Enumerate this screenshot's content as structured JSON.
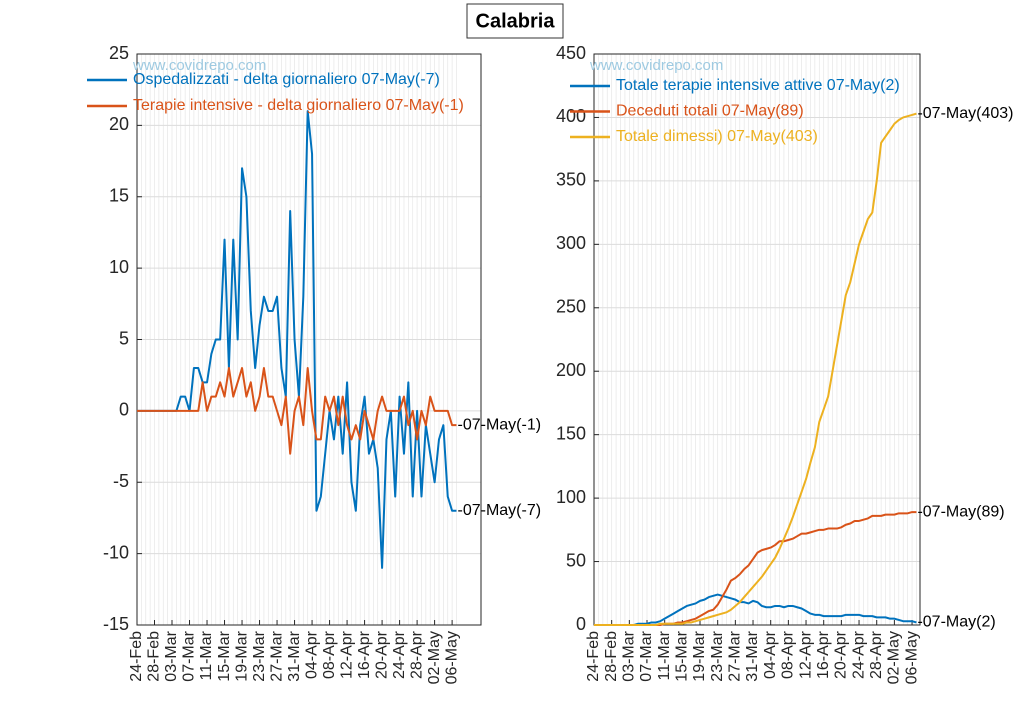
{
  "title": "Calabria",
  "chart_data": [
    {
      "type": "line",
      "watermark": "www.covidrepo.com",
      "categories": [
        "24-Feb",
        null,
        null,
        null,
        "28-Feb",
        null,
        null,
        null,
        "03-Mar",
        null,
        null,
        null,
        "07-Mar",
        null,
        null,
        null,
        "11-Mar",
        null,
        null,
        null,
        "15-Mar",
        null,
        null,
        null,
        "19-Mar",
        null,
        null,
        null,
        "23-Mar",
        null,
        null,
        null,
        "27-Mar",
        null,
        null,
        null,
        "31-Mar",
        null,
        null,
        null,
        "04-Apr",
        null,
        null,
        null,
        "08-Apr",
        null,
        null,
        null,
        "12-Apr",
        null,
        null,
        null,
        "16-Apr",
        null,
        null,
        null,
        "20-Apr",
        null,
        null,
        null,
        "24-Apr",
        null,
        null,
        null,
        "28-Apr",
        null,
        null,
        null,
        "02-May",
        null,
        null,
        null,
        "06-May",
        null
      ],
      "ylim": [
        -15,
        25
      ],
      "yticks": [
        -15,
        -10,
        -5,
        0,
        5,
        10,
        15,
        20,
        25
      ],
      "grid": true,
      "legend": "upper left",
      "series": [
        {
          "name": "Ospedalizzati - delta giornaliero 07-May(-7)",
          "color": "#0072BD",
          "end_label": "-07-May(-7)",
          "values": [
            0,
            0,
            0,
            0,
            0,
            0,
            0,
            0,
            0,
            0,
            1,
            1,
            0,
            3,
            3,
            2,
            2,
            4,
            5,
            5,
            12,
            3,
            12,
            5,
            17,
            15,
            7,
            3,
            6,
            8,
            7,
            7,
            8,
            3,
            1,
            14,
            5,
            1,
            8,
            21,
            18,
            -7,
            -6,
            -3,
            0,
            -2,
            1,
            -3,
            2,
            -5,
            -7,
            -1,
            1,
            -3,
            -2,
            -4,
            -11,
            -2,
            0,
            -6,
            1,
            -3,
            2,
            -6,
            0,
            -6,
            -1,
            -3,
            -5,
            -2,
            -1,
            -6,
            -7,
            -7
          ]
        },
        {
          "name": "Terapie intensive - delta giornaliero 07-May(-1)",
          "color": "#D95319",
          "end_label": "-07-May(-1)",
          "values": [
            0,
            0,
            0,
            0,
            0,
            0,
            0,
            0,
            0,
            0,
            0,
            0,
            0,
            0,
            0,
            2,
            0,
            1,
            1,
            2,
            1,
            3,
            1,
            2,
            3,
            1,
            2,
            0,
            1,
            3,
            1,
            1,
            0,
            -1,
            1,
            -3,
            0,
            1,
            -1,
            3,
            0,
            -2,
            -2,
            1,
            0,
            1,
            -1,
            1,
            -1,
            -2,
            -1,
            -2,
            0,
            -1,
            -2,
            0,
            1,
            0,
            0,
            0,
            0,
            1,
            -1,
            0,
            -2,
            0,
            -1,
            1,
            0,
            0,
            0,
            0,
            -1,
            -1
          ]
        }
      ]
    },
    {
      "type": "line",
      "watermark": "www.covidrepo.com",
      "categories": [
        "24-Feb",
        null,
        null,
        null,
        "28-Feb",
        null,
        null,
        null,
        "03-Mar",
        null,
        null,
        null,
        "07-Mar",
        null,
        null,
        null,
        "11-Mar",
        null,
        null,
        null,
        "15-Mar",
        null,
        null,
        null,
        "19-Mar",
        null,
        null,
        null,
        "23-Mar",
        null,
        null,
        null,
        "27-Mar",
        null,
        null,
        null,
        "31-Mar",
        null,
        null,
        null,
        "04-Apr",
        null,
        null,
        null,
        "08-Apr",
        null,
        null,
        null,
        "12-Apr",
        null,
        null,
        null,
        "16-Apr",
        null,
        null,
        null,
        "20-Apr",
        null,
        null,
        null,
        "24-Apr",
        null,
        null,
        null,
        "28-Apr",
        null,
        null,
        null,
        "02-May",
        null,
        null,
        null,
        "06-May",
        null
      ],
      "ylim": [
        0,
        450
      ],
      "yticks": [
        0,
        50,
        100,
        150,
        200,
        250,
        300,
        350,
        400,
        450
      ],
      "grid": true,
      "legend": "upper left",
      "series": [
        {
          "name": "Totale terapie intensive attive 07-May(2)",
          "color": "#0072BD",
          "end_label": "-07-May(2)",
          "values": [
            0,
            0,
            0,
            0,
            0,
            0,
            0,
            0,
            0,
            0,
            1,
            1,
            1,
            2,
            2,
            3,
            5,
            7,
            9,
            11,
            13,
            15,
            16,
            17,
            19,
            20,
            22,
            23,
            24,
            23,
            22,
            21,
            20,
            18,
            18,
            17,
            19,
            18,
            15,
            14,
            14,
            15,
            15,
            14,
            15,
            15,
            14,
            13,
            11,
            9,
            8,
            8,
            7,
            7,
            7,
            7,
            7,
            8,
            8,
            8,
            8,
            7,
            7,
            7,
            6,
            6,
            6,
            5,
            5,
            4,
            3,
            3,
            3,
            2
          ]
        },
        {
          "name": "Deceduti totali 07-May(89)",
          "color": "#D95319",
          "end_label": "-07-May(89)",
          "values": [
            0,
            0,
            0,
            0,
            0,
            0,
            0,
            0,
            0,
            0,
            0,
            0,
            0,
            0,
            0,
            0,
            1,
            1,
            1,
            2,
            2,
            3,
            4,
            5,
            7,
            9,
            11,
            12,
            16,
            22,
            28,
            35,
            37,
            40,
            44,
            47,
            52,
            57,
            59,
            60,
            61,
            63,
            66,
            66,
            67,
            68,
            70,
            72,
            72,
            73,
            74,
            75,
            75,
            76,
            76,
            76,
            77,
            79,
            80,
            82,
            82,
            83,
            84,
            86,
            86,
            86,
            87,
            87,
            87,
            88,
            88,
            88,
            89,
            89
          ]
        },
        {
          "name": "Totale dimessi) 07-May(403)",
          "color": "#EDB120",
          "end_label": "-07-May(403)",
          "values": [
            0,
            0,
            0,
            0,
            0,
            0,
            0,
            0,
            0,
            0,
            0,
            0,
            0,
            0,
            0,
            1,
            1,
            1,
            1,
            1,
            1,
            2,
            2,
            3,
            4,
            5,
            6,
            7,
            8,
            9,
            10,
            12,
            15,
            18,
            22,
            26,
            30,
            34,
            38,
            43,
            48,
            53,
            60,
            68,
            76,
            85,
            95,
            105,
            115,
            128,
            140,
            160,
            170,
            180,
            200,
            220,
            240,
            260,
            270,
            285,
            300,
            310,
            320,
            325,
            350,
            380,
            385,
            390,
            395,
            398,
            400,
            401,
            402,
            403
          ]
        }
      ]
    }
  ]
}
